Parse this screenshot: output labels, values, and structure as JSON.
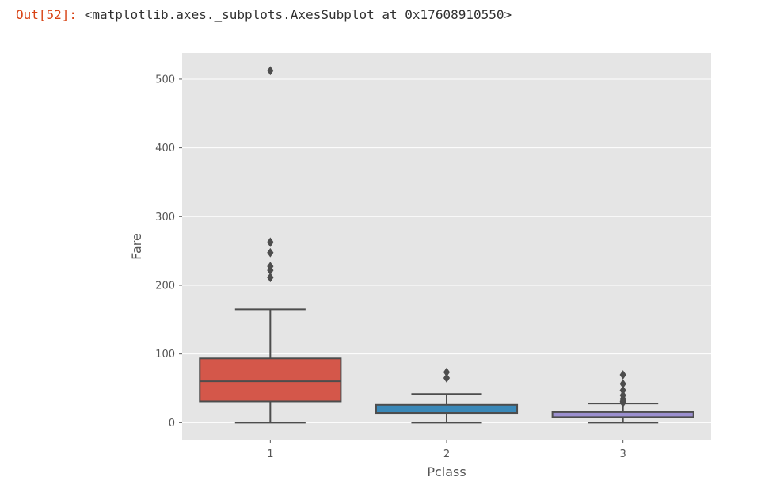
{
  "cell": {
    "prompt": "Out[52]:",
    "output_text": "<matplotlib.axes._subplots.AxesSubplot at 0x17608910550>"
  },
  "chart_data": {
    "type": "box",
    "title": "",
    "xlabel": "Pclass",
    "ylabel": "Fare",
    "categories": [
      "1",
      "2",
      "3"
    ],
    "yticks": [
      0,
      100,
      200,
      300,
      400,
      500
    ],
    "ylim": [
      -25,
      538
    ],
    "grid": true,
    "colors": {
      "background": "#e5e5e5",
      "grid": "#ffffff",
      "edge": "#4d4d4d"
    },
    "boxes": [
      {
        "category": "1",
        "color": "#d4574a",
        "whislo": 0,
        "q1": 31,
        "med": 60.3,
        "q3": 93.5,
        "whishi": 164.9,
        "fliers": [
          211.3,
          211.5,
          221.8,
          227.5,
          247.5,
          262.4,
          263,
          512.3
        ]
      },
      {
        "category": "2",
        "color": "#3a88b8",
        "whislo": 0,
        "q1": 13,
        "med": 14.25,
        "q3": 26,
        "whishi": 41.6,
        "fliers": [
          65,
          73.5
        ]
      },
      {
        "category": "3",
        "color": "#9b8fcf",
        "whislo": 0,
        "q1": 7.75,
        "med": 8.05,
        "q3": 15.5,
        "whishi": 27.9,
        "fliers": [
          29.1,
          31.3,
          34.4,
          39.7,
          46.9,
          56.5,
          69.55
        ]
      }
    ]
  }
}
